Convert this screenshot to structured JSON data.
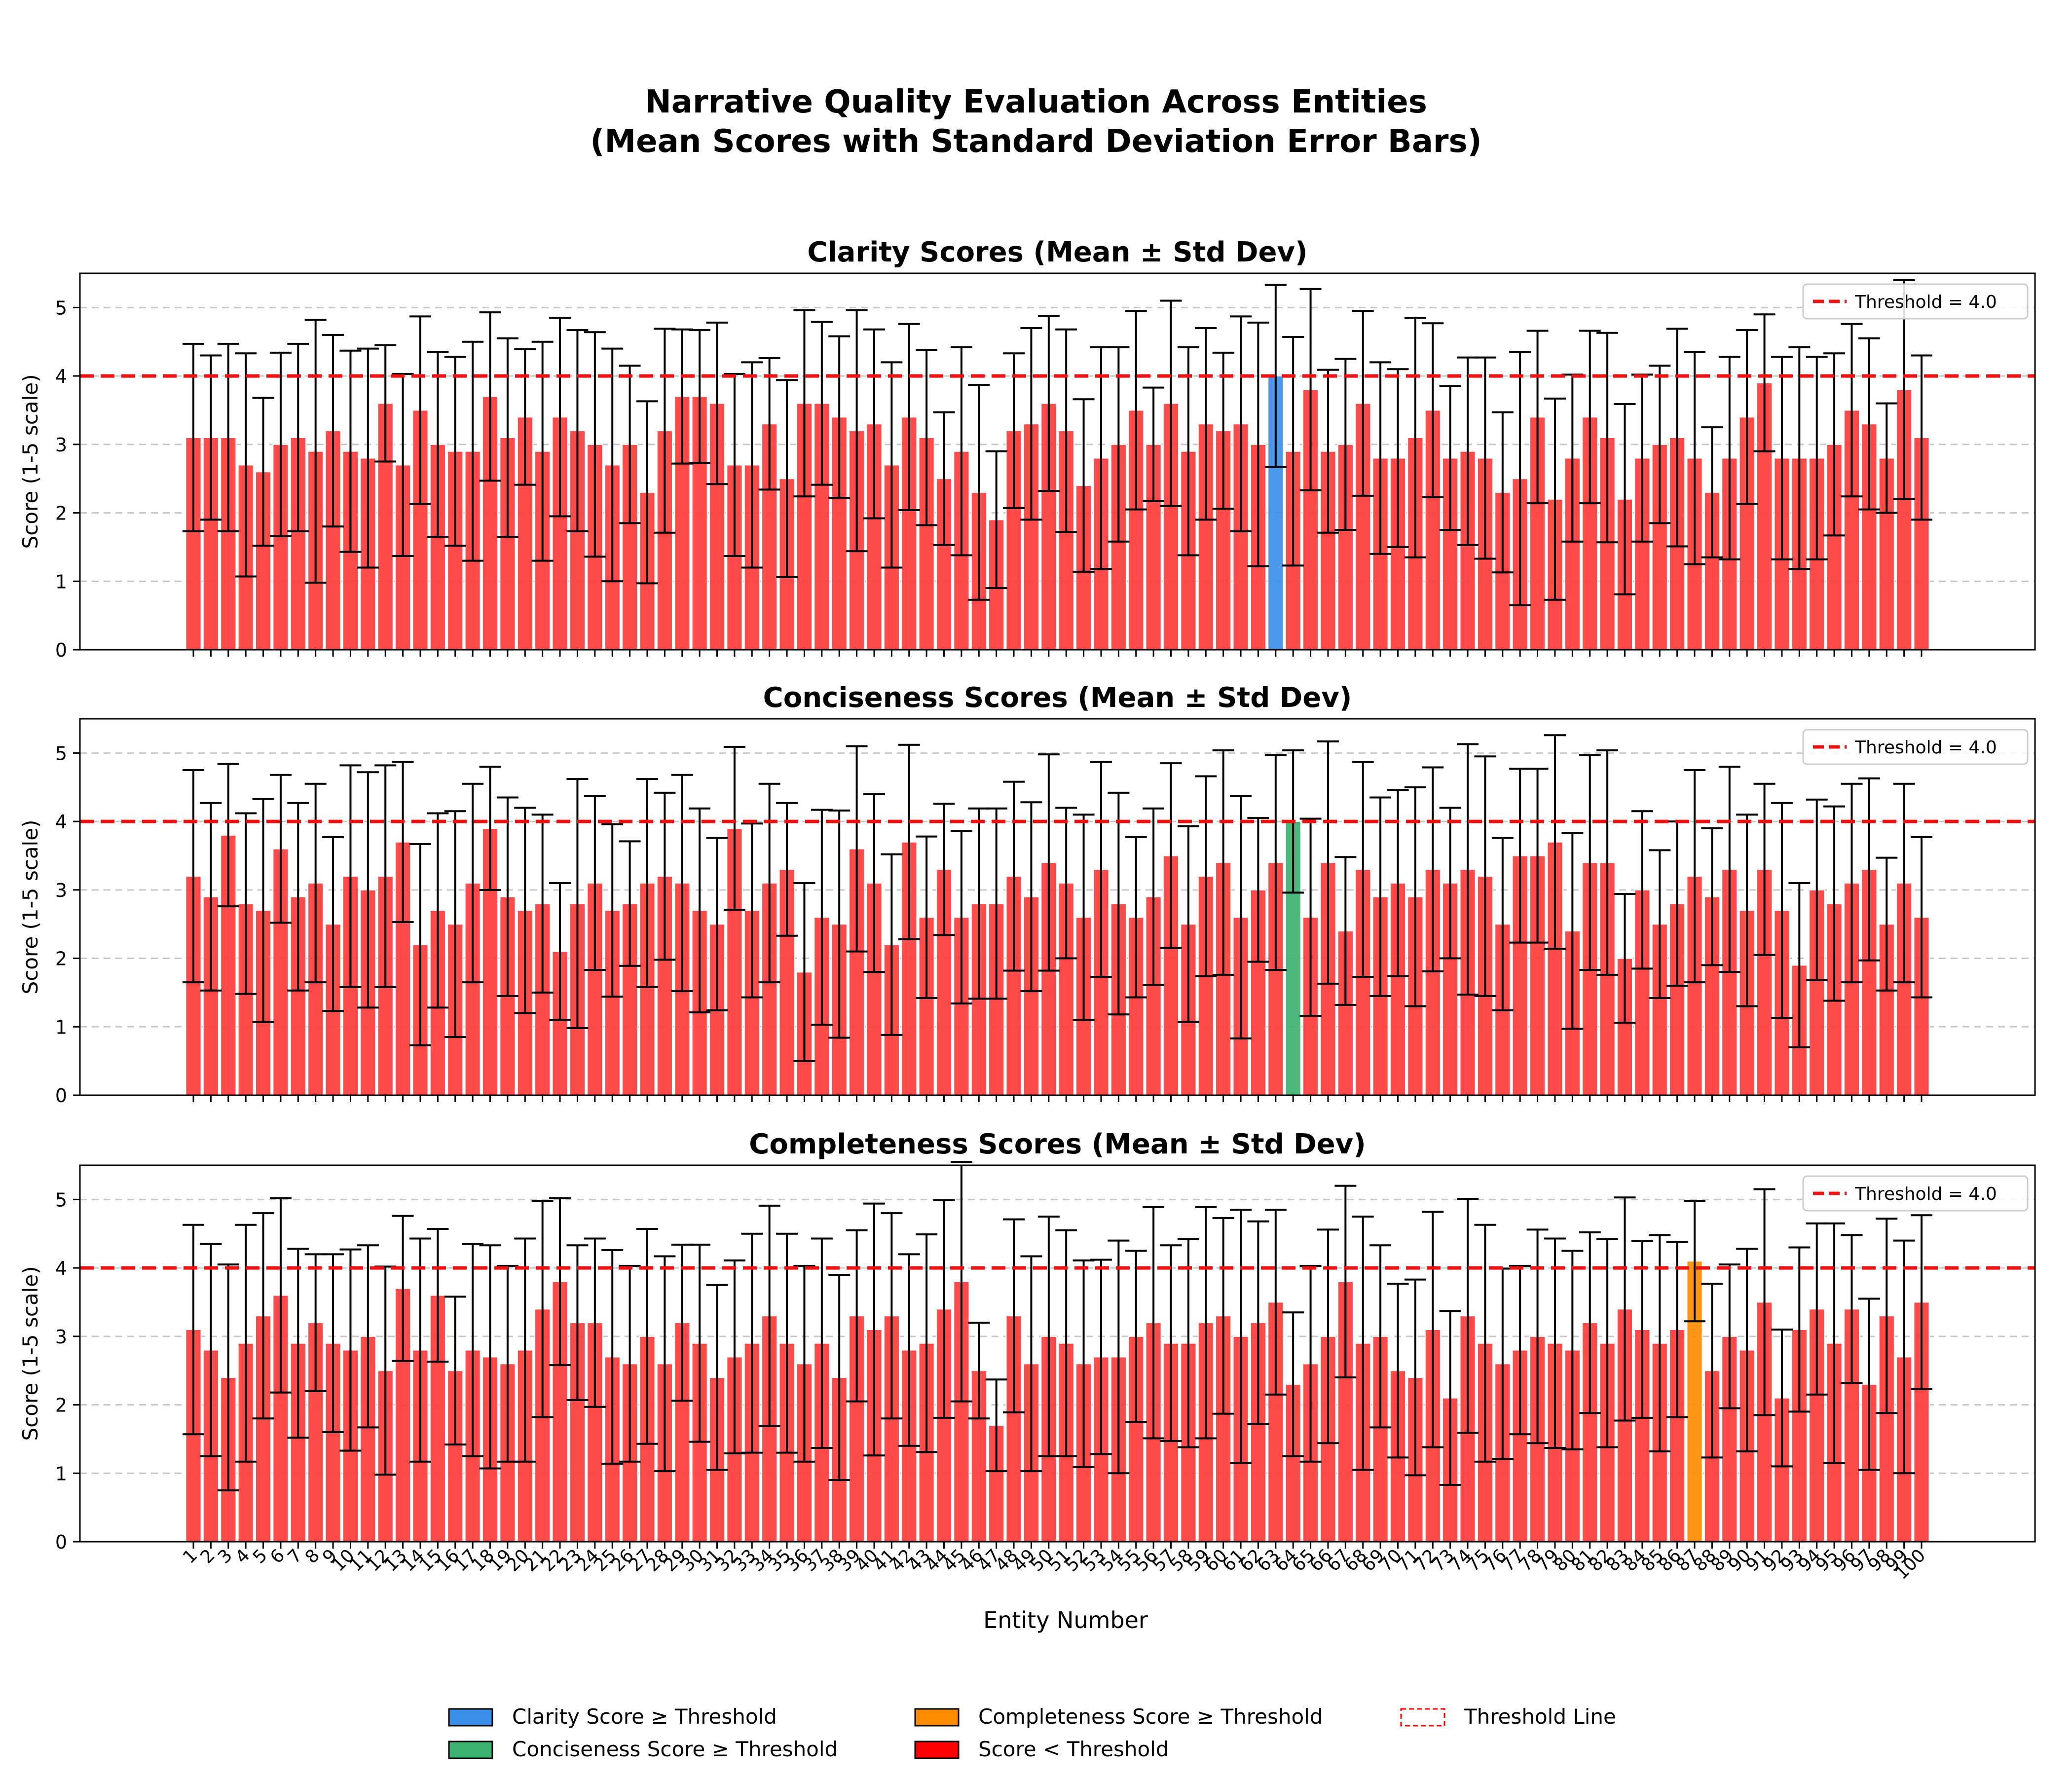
{
  "title_line1": "Narrative Quality Evaluation Across Entities",
  "title_line2": "(Mean Scores with Standard Deviation Error Bars)",
  "chart_data": {
    "type": "bar",
    "xlabel": "Entity Number",
    "ylabel": "Score (1-5 scale)",
    "ylim": [
      0,
      5.5
    ],
    "yticks": [
      0,
      1,
      2,
      3,
      4,
      5
    ],
    "threshold": 4.0,
    "threshold_label": "Threshold = 4.0",
    "categories": [
      "1",
      "2",
      "3",
      "4",
      "5",
      "6",
      "7",
      "8",
      "9",
      "10",
      "11",
      "12",
      "13",
      "14",
      "15",
      "16",
      "17",
      "18",
      "19",
      "20",
      "21",
      "22",
      "23",
      "24",
      "25",
      "26",
      "27",
      "28",
      "29",
      "30",
      "31",
      "32",
      "33",
      "34",
      "35",
      "36",
      "37",
      "38",
      "39",
      "40",
      "41",
      "42",
      "43",
      "44",
      "45",
      "46",
      "47",
      "48",
      "49",
      "50",
      "51",
      "52",
      "53",
      "54",
      "55",
      "56",
      "57",
      "58",
      "59",
      "60",
      "61",
      "62",
      "63",
      "64",
      "65",
      "66",
      "67",
      "68",
      "69",
      "70",
      "71",
      "72",
      "73",
      "74",
      "75",
      "76",
      "77",
      "78",
      "79",
      "80",
      "81",
      "82",
      "83",
      "84",
      "85",
      "86",
      "87",
      "88",
      "89",
      "90",
      "91",
      "92",
      "93",
      "94",
      "95",
      "96",
      "97",
      "98",
      "99",
      "100"
    ],
    "panels": [
      {
        "title": "Clarity Scores (Mean ± Std Dev)",
        "above_color": "#3a8fe8",
        "below_color": "#ff3b3b",
        "values": [
          3.1,
          3.1,
          3.1,
          2.7,
          2.6,
          3.0,
          3.1,
          2.9,
          3.2,
          2.9,
          2.8,
          3.6,
          2.7,
          3.5,
          3.0,
          2.9,
          2.9,
          3.7,
          3.1,
          3.4,
          2.9,
          3.4,
          3.2,
          3.0,
          2.7,
          3.0,
          2.3,
          3.2,
          3.7,
          3.7,
          3.6,
          2.7,
          2.7,
          3.3,
          2.5,
          3.6,
          3.6,
          3.4,
          3.2,
          3.3,
          2.7,
          3.4,
          3.1,
          2.5,
          2.9,
          2.3,
          1.9,
          3.2,
          3.3,
          3.6,
          3.2,
          2.4,
          2.8,
          3.0,
          3.5,
          3.0,
          3.6,
          2.9,
          3.3,
          3.2,
          3.3,
          3.0,
          4.0,
          2.9,
          3.8,
          2.9,
          3.0,
          3.6,
          2.8,
          2.8,
          3.1,
          3.5,
          2.8,
          2.9,
          2.8,
          2.3,
          2.5,
          3.4,
          2.2,
          2.8,
          3.4,
          3.1,
          2.2,
          2.8,
          3.0,
          3.1,
          2.8,
          2.3,
          2.8,
          3.4,
          3.9,
          2.8,
          2.8,
          2.8,
          3.0,
          3.5,
          3.3,
          2.8,
          3.8,
          3.1
        ],
        "errors": [
          1.37,
          1.2,
          1.37,
          1.63,
          1.08,
          1.34,
          1.37,
          1.92,
          1.4,
          1.47,
          1.6,
          0.85,
          1.33,
          1.37,
          1.35,
          1.38,
          1.6,
          1.23,
          1.45,
          0.99,
          1.6,
          1.45,
          1.47,
          1.64,
          1.7,
          1.15,
          1.33,
          1.49,
          0.98,
          0.97,
          1.18,
          1.33,
          1.5,
          0.96,
          1.44,
          1.36,
          1.19,
          1.18,
          1.76,
          1.38,
          1.5,
          1.36,
          1.28,
          0.97,
          1.52,
          1.57,
          1.0,
          1.13,
          1.4,
          1.28,
          1.48,
          1.26,
          1.62,
          1.42,
          1.45,
          0.83,
          1.5,
          1.52,
          1.4,
          1.14,
          1.57,
          1.78,
          1.33,
          1.67,
          1.47,
          1.19,
          1.25,
          1.35,
          1.4,
          1.3,
          1.75,
          1.27,
          1.05,
          1.37,
          1.47,
          1.17,
          1.85,
          1.26,
          1.47,
          1.22,
          1.26,
          1.53,
          1.39,
          1.22,
          1.15,
          1.59,
          1.55,
          0.95,
          1.48,
          1.27,
          1.0,
          1.48,
          1.62,
          1.48,
          1.33,
          1.26,
          1.25,
          0.8,
          1.6,
          1.2
        ]
      },
      {
        "title": "Conciseness Scores (Mean ± Std Dev)",
        "above_color": "#3cb371",
        "below_color": "#ff3b3b",
        "values": [
          3.2,
          2.9,
          3.8,
          2.8,
          2.7,
          3.6,
          2.9,
          3.1,
          2.5,
          3.2,
          3.0,
          3.2,
          3.7,
          2.2,
          2.7,
          2.5,
          3.1,
          3.9,
          2.9,
          2.7,
          2.8,
          2.1,
          2.8,
          3.1,
          2.7,
          2.8,
          3.1,
          3.2,
          3.1,
          2.7,
          2.5,
          3.9,
          2.7,
          3.1,
          3.3,
          1.8,
          2.6,
          2.5,
          3.6,
          3.1,
          2.2,
          3.7,
          2.6,
          3.3,
          2.6,
          2.8,
          2.8,
          3.2,
          2.9,
          3.4,
          3.1,
          2.6,
          3.3,
          2.8,
          2.6,
          2.9,
          3.5,
          2.5,
          3.2,
          3.4,
          2.6,
          3.0,
          3.4,
          4.0,
          2.6,
          3.4,
          2.4,
          3.3,
          2.9,
          3.1,
          2.9,
          3.3,
          3.1,
          3.3,
          3.2,
          2.5,
          3.5,
          3.5,
          3.7,
          2.4,
          3.4,
          3.4,
          2.0,
          3.0,
          2.5,
          2.8,
          3.2,
          2.9,
          3.3,
          2.7,
          3.3,
          2.7,
          1.9,
          3.0,
          2.8,
          3.1,
          3.3,
          2.5,
          3.1,
          2.6
        ],
        "errors": [
          1.55,
          1.37,
          1.04,
          1.32,
          1.63,
          1.08,
          1.37,
          1.45,
          1.27,
          1.62,
          1.72,
          1.62,
          1.17,
          1.47,
          1.42,
          1.65,
          1.45,
          0.9,
          1.45,
          1.5,
          1.3,
          1.0,
          1.82,
          1.27,
          1.26,
          0.91,
          1.52,
          1.22,
          1.58,
          1.49,
          1.26,
          1.19,
          1.27,
          1.45,
          0.97,
          1.3,
          1.57,
          1.66,
          1.5,
          1.3,
          1.32,
          1.42,
          1.18,
          0.96,
          1.26,
          1.39,
          1.39,
          1.38,
          1.38,
          1.58,
          1.1,
          1.5,
          1.57,
          1.62,
          1.17,
          1.29,
          1.35,
          1.43,
          1.46,
          1.64,
          1.77,
          1.05,
          1.57,
          1.04,
          1.44,
          1.77,
          1.08,
          1.57,
          1.45,
          1.36,
          1.6,
          1.49,
          1.1,
          1.83,
          1.75,
          1.26,
          1.27,
          1.27,
          1.56,
          1.43,
          1.57,
          1.64,
          0.94,
          1.15,
          1.08,
          1.2,
          1.55,
          1.0,
          1.5,
          1.4,
          1.25,
          1.57,
          1.2,
          1.32,
          1.42,
          1.45,
          1.33,
          0.97,
          1.45,
          1.17
        ]
      },
      {
        "title": "Completeness Scores (Mean ± Std Dev)",
        "above_color": "#ff8c00",
        "below_color": "#ff3b3b",
        "values": [
          3.1,
          2.8,
          2.4,
          2.9,
          3.3,
          3.6,
          2.9,
          3.2,
          2.9,
          2.8,
          3.0,
          2.5,
          3.7,
          2.8,
          3.6,
          2.5,
          2.8,
          2.7,
          2.6,
          2.8,
          3.4,
          3.8,
          3.2,
          3.2,
          2.7,
          2.6,
          3.0,
          2.6,
          3.2,
          2.9,
          2.4,
          2.7,
          2.9,
          3.3,
          2.9,
          2.6,
          2.9,
          2.4,
          3.3,
          3.1,
          3.3,
          2.8,
          2.9,
          3.4,
          3.8,
          2.5,
          1.7,
          3.3,
          2.6,
          3.0,
          2.9,
          2.6,
          2.7,
          2.7,
          3.0,
          3.2,
          2.9,
          2.9,
          3.2,
          3.3,
          3.0,
          3.2,
          3.5,
          2.3,
          2.6,
          3.0,
          3.8,
          2.9,
          3.0,
          2.5,
          2.4,
          3.1,
          2.1,
          3.3,
          2.9,
          2.6,
          2.8,
          3.0,
          2.9,
          2.8,
          3.2,
          2.9,
          3.4,
          3.1,
          2.9,
          3.1,
          4.1,
          2.5,
          3.0,
          2.8,
          3.5,
          2.1,
          3.1,
          3.4,
          2.9,
          3.4,
          2.3,
          3.3,
          2.7,
          3.5
        ],
        "errors": [
          1.53,
          1.55,
          1.65,
          1.73,
          1.5,
          1.42,
          1.38,
          1.0,
          1.3,
          1.47,
          1.33,
          1.52,
          1.06,
          1.63,
          0.97,
          1.08,
          1.55,
          1.63,
          1.43,
          1.63,
          1.58,
          1.22,
          1.13,
          1.23,
          1.56,
          1.43,
          1.57,
          1.57,
          1.14,
          1.44,
          1.35,
          1.41,
          1.6,
          1.61,
          1.6,
          1.43,
          1.53,
          1.5,
          1.25,
          1.84,
          1.5,
          1.4,
          1.59,
          1.59,
          1.75,
          0.7,
          0.67,
          1.41,
          1.57,
          1.75,
          1.65,
          1.51,
          1.42,
          1.7,
          1.25,
          1.69,
          1.43,
          1.52,
          1.69,
          1.43,
          1.85,
          1.48,
          1.35,
          1.05,
          1.43,
          1.56,
          1.4,
          1.85,
          1.33,
          1.27,
          1.43,
          1.72,
          1.27,
          1.71,
          1.73,
          1.39,
          1.23,
          1.56,
          1.53,
          1.45,
          1.32,
          1.52,
          1.63,
          1.29,
          1.58,
          1.28,
          0.88,
          1.27,
          1.05,
          1.48,
          1.65,
          1.0,
          1.2,
          1.25,
          1.75,
          1.08,
          1.25,
          1.42,
          1.7,
          1.27
        ]
      }
    ],
    "legend": [
      {
        "label": "Clarity Score ≥ Threshold",
        "color": "#3a8fe8",
        "style": "solid"
      },
      {
        "label": "Conciseness Score ≥ Threshold",
        "color": "#3cb371",
        "style": "solid"
      },
      {
        "label": "Completeness Score ≥ Threshold",
        "color": "#ff8c00",
        "style": "solid"
      },
      {
        "label": "Score < Threshold",
        "color": "#ff0000",
        "style": "solid"
      },
      {
        "label": "Threshold Line",
        "color": "#ff0000",
        "style": "dashed"
      }
    ],
    "threshold_color": "#ee1111",
    "grid": "horizontal-dashed",
    "legend_position": "upper-right"
  }
}
